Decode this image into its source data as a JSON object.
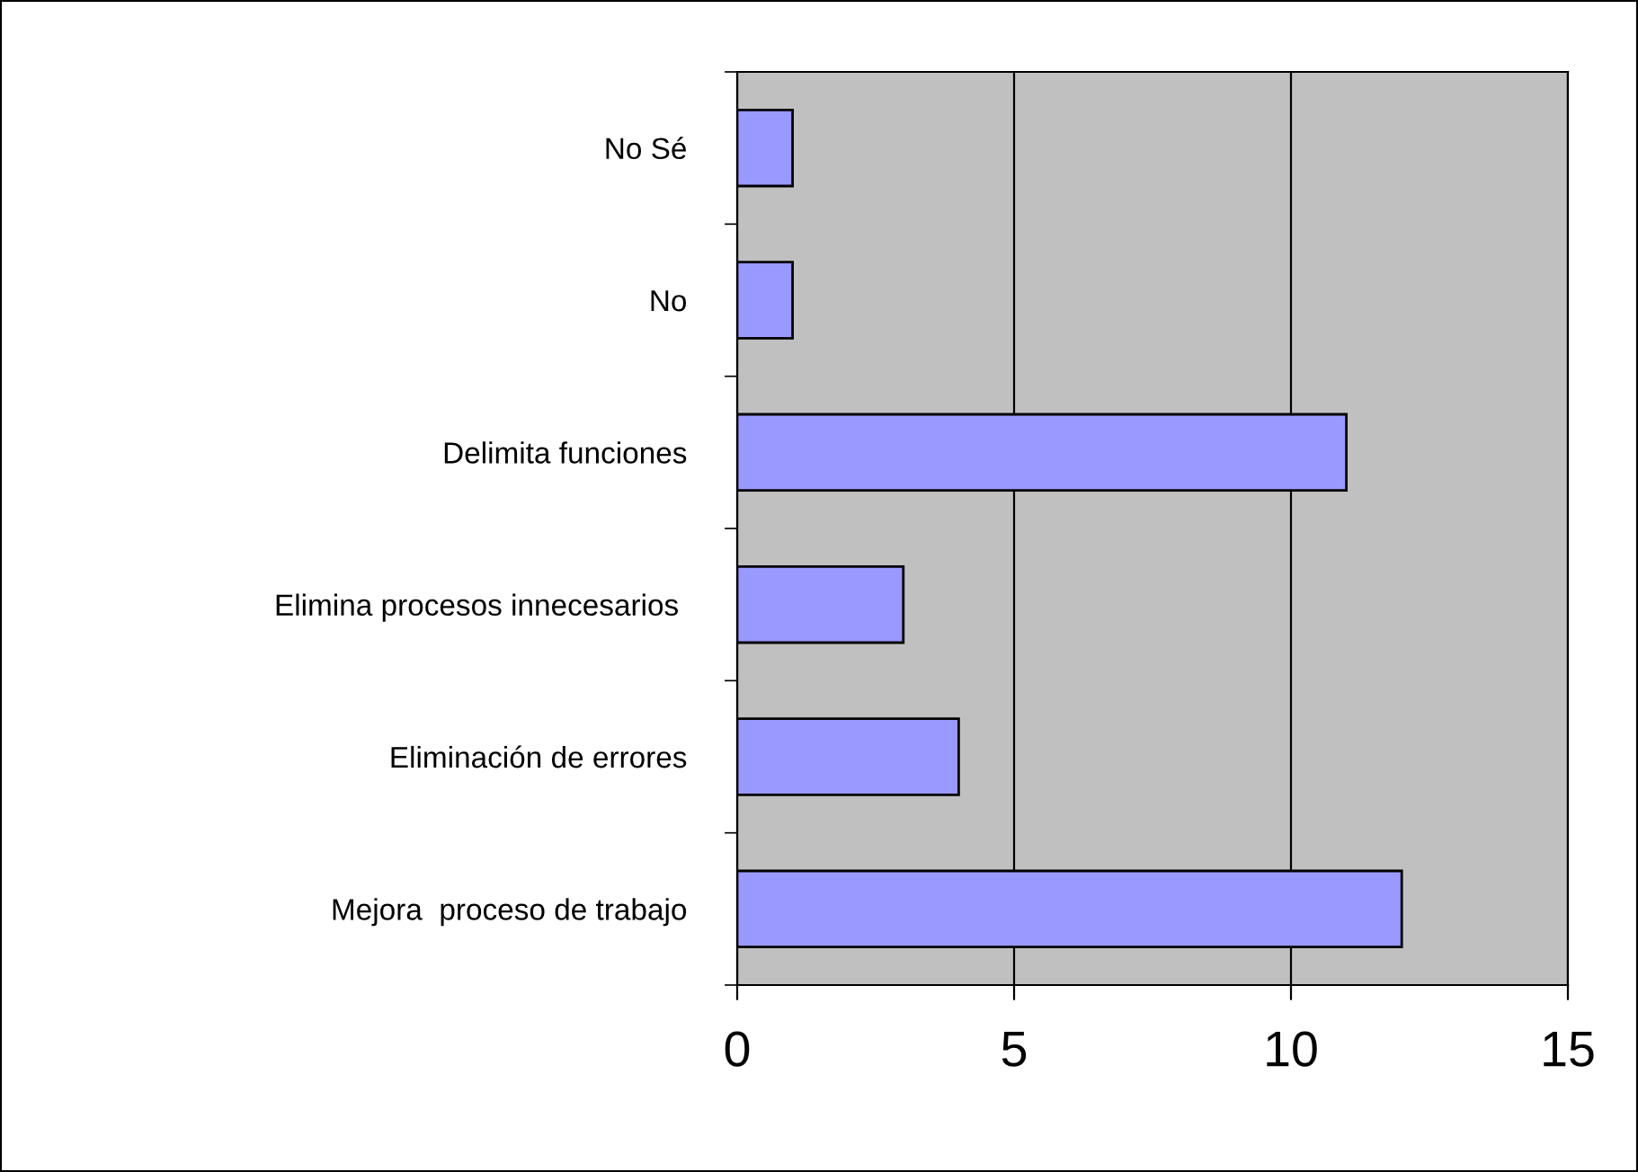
{
  "chart_data": {
    "type": "bar",
    "orientation": "horizontal",
    "categories": [
      "No Sé",
      "No",
      "Delimita funciones",
      "Elimina procesos innecesarios ",
      "Eliminación de errores",
      "Mejora  proceso de trabajo"
    ],
    "values": [
      1,
      1,
      11,
      3,
      4,
      12
    ],
    "color": "#9999ff",
    "xlim": [
      0,
      15
    ],
    "xticks": [
      0,
      5,
      10,
      15
    ],
    "grid": "x",
    "legend": false
  }
}
